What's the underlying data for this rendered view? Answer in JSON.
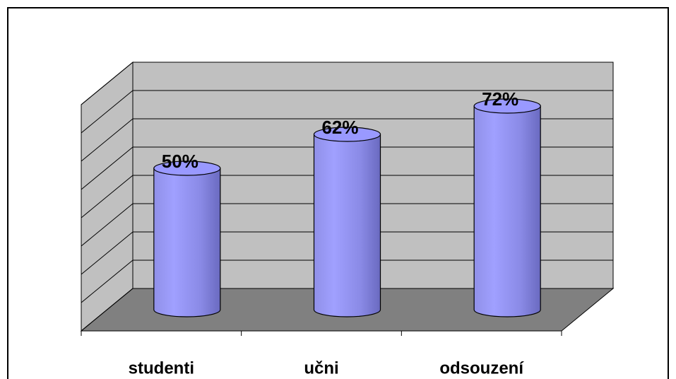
{
  "chart_data": {
    "type": "bar",
    "categories": [
      "studenti",
      "učni",
      "odsouzení"
    ],
    "values": [
      50,
      62,
      72
    ],
    "value_labels": [
      "50%",
      "62%",
      "72%"
    ],
    "color": "#9999ff",
    "ylim": [
      0,
      80
    ],
    "yticks": [
      0,
      10,
      20,
      30,
      40,
      50,
      60,
      70,
      80
    ],
    "grid": true
  }
}
